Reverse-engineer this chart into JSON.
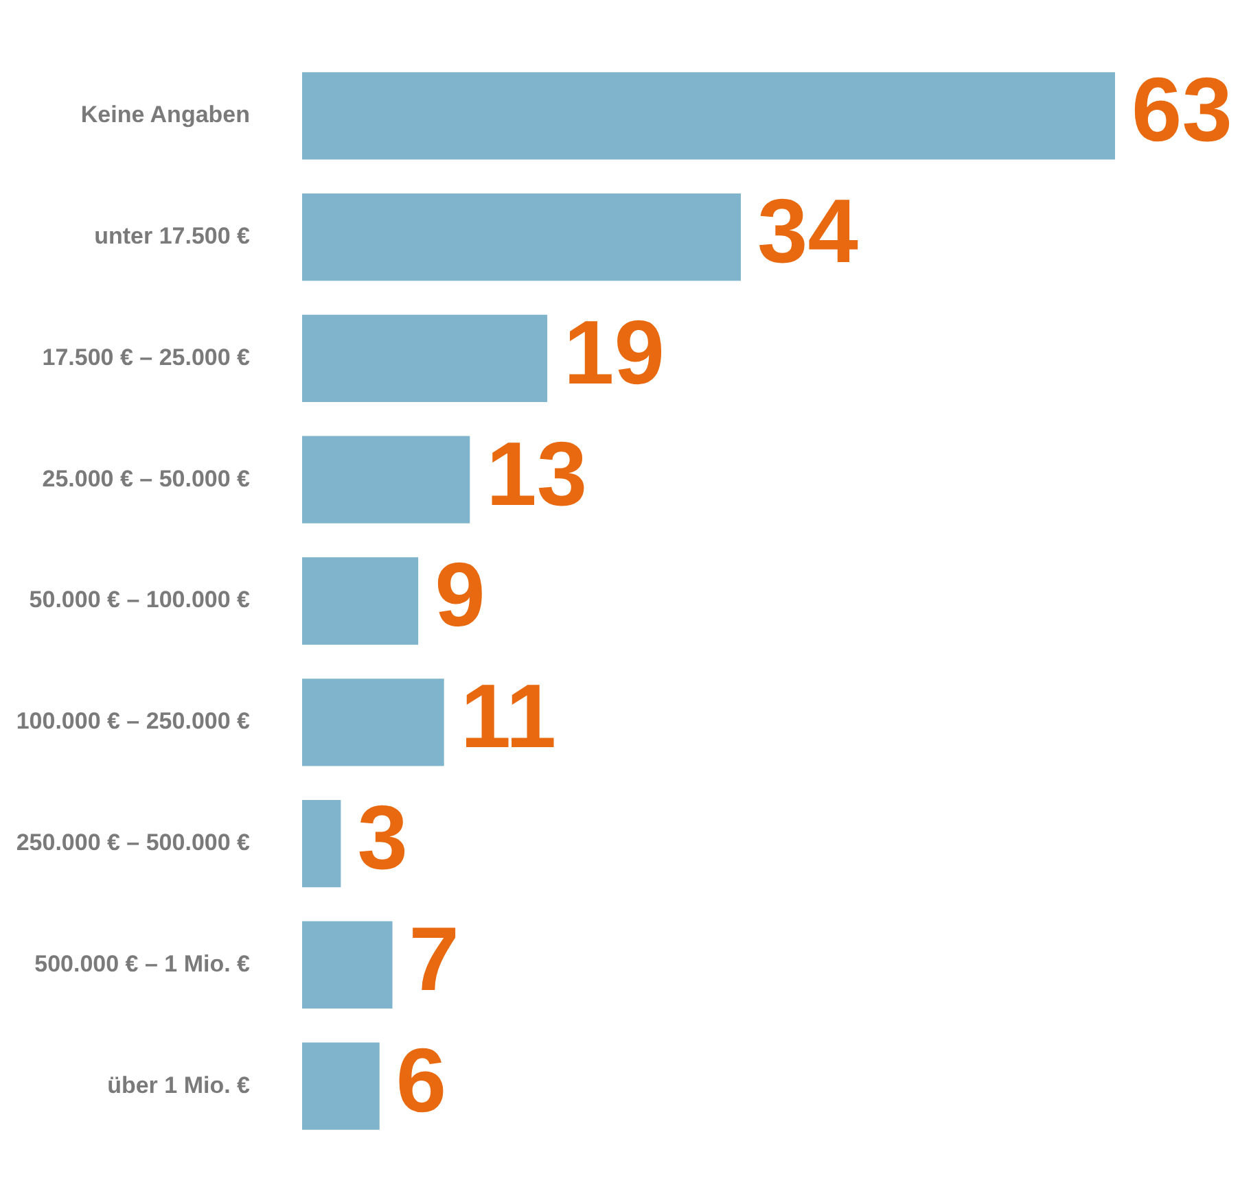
{
  "chart_data": {
    "type": "bar",
    "orientation": "horizontal",
    "categories": [
      "Keine Angaben",
      "unter 17.500 €",
      "17.500 € – 25.000 €",
      "25.000 € – 50.000 €",
      "50.000 € – 100.000 €",
      "100.000 € – 250.000 €",
      "250.000 € – 500.000 €",
      "500.000 € – 1 Mio. €",
      "über 1 Mio. €"
    ],
    "values": [
      63,
      34,
      19,
      13,
      9,
      11,
      3,
      7,
      6
    ],
    "color": "#7fb4cc",
    "data_labels": true,
    "tick_labels": "y"
  }
}
